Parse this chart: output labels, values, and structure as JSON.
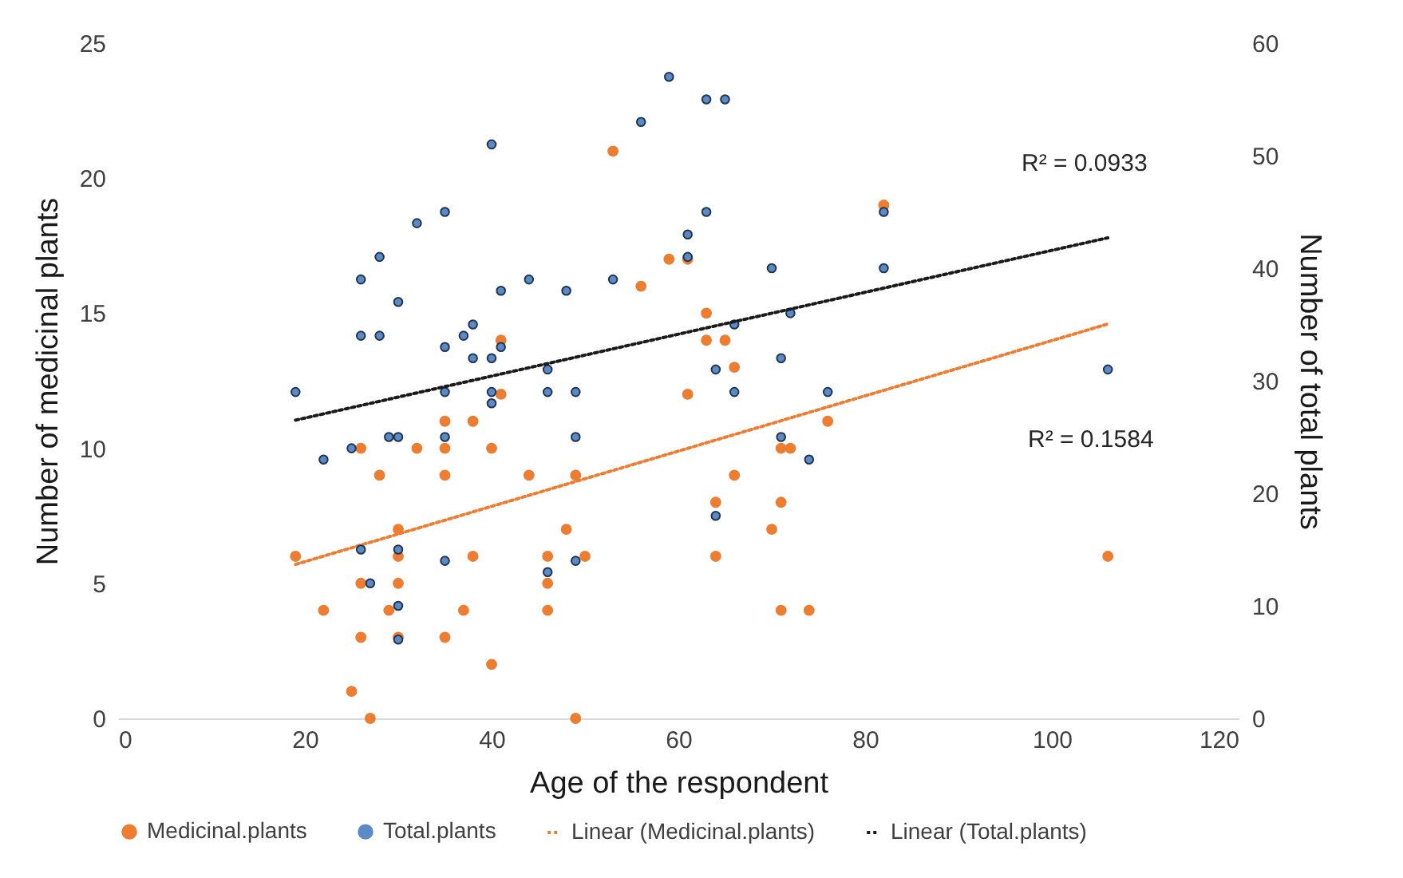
{
  "chart_data": {
    "type": "scatter",
    "xlabel": "Age of the respondent",
    "ylabel": "Number of medicinal plants",
    "y2label": "Number of total plants",
    "xlim": [
      0,
      120
    ],
    "xticks": [
      0,
      20,
      40,
      60,
      80,
      100,
      120
    ],
    "ylim": [
      0,
      25
    ],
    "yticks": [
      0,
      5,
      10,
      15,
      20,
      25
    ],
    "y2lim": [
      0,
      60
    ],
    "y2ticks": [
      0,
      10,
      20,
      30,
      40,
      50,
      60
    ],
    "legend": "bottom",
    "annotations": [
      "R² = 0.0933",
      "R² = 0.1584"
    ],
    "series": [
      {
        "name": "Medicinal.plants",
        "marker": "circle",
        "color": "#ed7d31",
        "x": [
          19,
          22,
          25,
          26,
          26,
          26,
          27,
          28,
          29,
          30,
          30,
          30,
          30,
          32,
          35,
          35,
          35,
          35,
          37,
          38,
          38,
          40,
          40,
          41,
          41,
          44,
          46,
          46,
          46,
          48,
          49,
          49,
          50,
          53,
          56,
          59,
          61,
          61,
          63,
          63,
          65,
          66,
          64,
          64,
          66,
          70,
          71,
          71,
          71,
          72,
          74,
          76,
          82,
          106
        ],
        "values": [
          6,
          4,
          1,
          10,
          5,
          3,
          0,
          9,
          4,
          7,
          6,
          5,
          3,
          10,
          11,
          10,
          9,
          3,
          4,
          11,
          6,
          10,
          2,
          12,
          14,
          9,
          6,
          5,
          4,
          7,
          9,
          0,
          6,
          21,
          16,
          17,
          17,
          12,
          15,
          14,
          14,
          13,
          8,
          6,
          9,
          7,
          10,
          8,
          4,
          10,
          4,
          11,
          19,
          6
        ]
      },
      {
        "name": "Total.plants",
        "marker": "circle",
        "axis": "y2",
        "color": "#5b8ac6",
        "x": [
          19,
          22,
          25,
          26,
          26,
          26,
          27,
          28,
          28,
          29,
          30,
          30,
          30,
          30,
          30,
          32,
          35,
          35,
          35,
          35,
          35,
          37,
          38,
          38,
          40,
          40,
          40,
          40,
          41,
          41,
          44,
          46,
          46,
          46,
          48,
          49,
          49,
          49,
          53,
          56,
          59,
          61,
          61,
          63,
          63,
          64,
          64,
          65,
          66,
          66,
          70,
          71,
          71,
          72,
          74,
          76,
          82,
          82,
          106
        ],
        "values": [
          29,
          23,
          24,
          39,
          34,
          15,
          12,
          41,
          34,
          25,
          37,
          25,
          15,
          10,
          7,
          44,
          45,
          33,
          29,
          25,
          14,
          34,
          35,
          32,
          51,
          32,
          29,
          28,
          38,
          33,
          39,
          31,
          29,
          13,
          38,
          29,
          25,
          14,
          39,
          53,
          57,
          43,
          41,
          55,
          45,
          31,
          18,
          55,
          35,
          29,
          40,
          32,
          25,
          36,
          23,
          29,
          45,
          40,
          31
        ]
      },
      {
        "name": "Linear (Medicinal.plants)",
        "type": "line",
        "line_style": "dotted",
        "color": "#ed7d31",
        "x": [
          19,
          106
        ],
        "values": [
          5.7,
          14.6
        ]
      },
      {
        "name": "Linear (Total.plants)",
        "type": "line",
        "line_style": "dotted",
        "axis": "y2",
        "color": "#1a1a1a",
        "x": [
          19,
          106
        ],
        "values": [
          26.5,
          42.7
        ]
      }
    ]
  }
}
